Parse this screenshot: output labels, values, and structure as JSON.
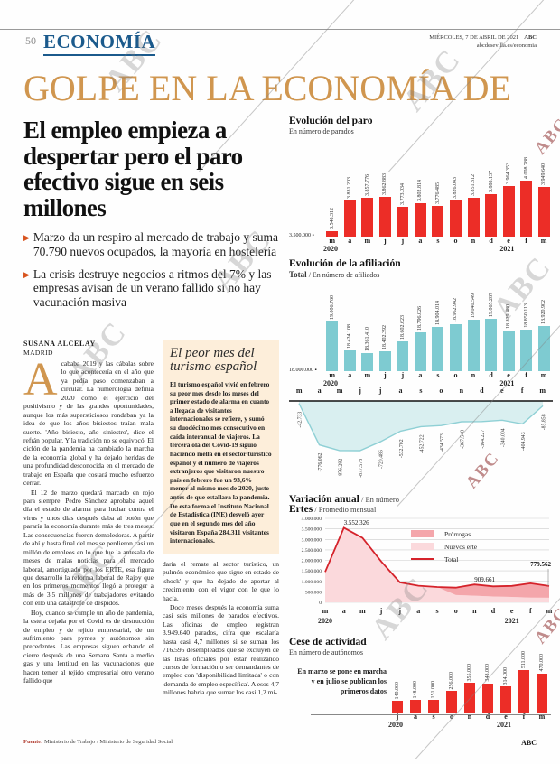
{
  "page": {
    "page_number": "50",
    "section": "ECONOMÍA",
    "date_line": "MIÉRCOLES, 7 DE ABRIL DE 2021",
    "brand": "ABC",
    "site": "abcdesevilla.es/economia",
    "banner": "GOLPE EN LA ECONOMÍA DE",
    "watermark": "ABC"
  },
  "article": {
    "headline": "El empleo empieza a despertar pero el paro efectivo sigue en seis millones",
    "bullets": [
      {
        "text": "Marzo da un respiro al mercado de trabajo y suma 70.790 nuevos ocupados, la mayoría en hostelería"
      },
      {
        "text": "La crisis destruye negocios a ritmos del 7% y las empresas avisan de un verano fallido si no hay vacunación masiva"
      }
    ],
    "author": "SUSANA ALCELAY",
    "location": "MADRID",
    "dropcap": "A",
    "col1_p1": "cababa 2019 y las cábalas sobre lo que acontecería en el año que ya pedía paso comenzaban a circular. La numerología definía 2020 como el ejercicio del positivismo y de las grandes oportunidades, aunque los más supersticiosos rondaban ya la idea de que los años bisiestos traían mala suerte. 'Año bisiesto, año siniestro', dice el refrán popular. Y la tradición no se equivocó. El ciclón de la pandemia ha cambiado la marcha de la economía global y ha dejado heridas de una profundidad desconocida en el mercado de trabajo en España que costará mucho esfuerzo cerrar.",
    "col1_p2": "El 12 de marzo quedará marcado en rojo para siempre. Pedro Sánchez aprobaba aquel día el estado de alarma para luchar contra el virus y unos días después daba al botón que pararía la economía durante más de tres meses. Las consecuencias fueron demoledoras. A partir de ahí y hasta final del mes se perdieron casi un millón de empleos en lo que fue la antesala de meses de malas noticias para el mercado laboral, amortiguado por los ERTE, esa figura que desarrolló la reforma laboral de Rajoy que en los primeros momentos llegó a proteger a más de 3,5 millones de trabajadores evitando con ello una catástrofe de despidos.",
    "col1_p3": "Hoy, cuando se cumple un año de pandemia, la estela dejada por el Covid es de destrucción de empleo y de tejido empresarial, de un sufrimiento para pymes y autónomos sin precedentes. Las empresas siguen echando el cierre después de una Semana Santa a medio gas y una lentitud en las vacunaciones que hacen temer al tejido empresarial otro verano fallido que",
    "col2_p1": "daría el remate al sector turístico, un pulmón económico que sigue en estado de 'shock' y que ha dejado de aportar al crecimiento con el vigor con le que lo hacía.",
    "col2_p2": "Doce meses después la economía suma casi seis millones de parados efectivos. Las oficinas de empleo registran 3.949.640 parados, cifra que escalaría hasta casi 4,7 millones si se suman los 716.595 desempleados que se excluyen de las listas oficiales por estar realizando cursos de formación o ser demandantes de empleo con 'disponibilidad limitada' o con 'demanda de empleo específica'. A esos 4,7 millones habría que sumar los casi 1,2 mi-"
  },
  "box": {
    "title_line1": "El peor mes del",
    "title_line2": "turismo español",
    "body": "El turismo español vivió en febrero su peor mes desde los meses del primer estado de alarma en cuanto a llegada de visitantes internacionales se refiere, y sumó su duodécimo mes consecutivo en caída interanual de viajeros. La tercera ola del Covid-19 siguió haciendo mella en el sector turístico español y el número de viajeros extranjeros que visitaron nuestro país en febrero fue un 93,6% menor al mismo mes de 2020, justo antes de que estallara la pandemia. De esta forma el Instituto Nacional de Estadística (INE) desveló ayer que en el segundo mes del año visitaron España 284.311 visitantes internacionales."
  },
  "chart_data": [
    {
      "type": "bar",
      "title": "Evolución del paro",
      "subtitle": "En número de parados",
      "categories": [
        "m",
        "a",
        "m",
        "j",
        "j",
        "a",
        "s",
        "o",
        "n",
        "d",
        "e",
        "f",
        "m"
      ],
      "years": [
        {
          "index": 0,
          "label": "2020"
        },
        {
          "index": 10,
          "label": "2021"
        }
      ],
      "values": [
        3548312,
        3831203,
        3857776,
        3862883,
        3773034,
        3802814,
        3776485,
        3826043,
        3851312,
        3888137,
        3964353,
        4008788,
        3949640
      ],
      "value_labels": [
        "3.548.312",
        "3.831.203",
        "3.857.776",
        "3.862.883",
        "3.773.034",
        "3.802.814",
        "3.776.485",
        "3.826.043",
        "3.851.312",
        "3.888.137",
        "3.964.353",
        "4.008.788",
        "3.949.640"
      ],
      "baseline_label": "3.500.000",
      "baseline_value": 3500000,
      "ymax": 4060000,
      "bar_color": "#ec2d27"
    },
    {
      "type": "bar",
      "title": "Evolución de la afiliación",
      "subtitle_bold": "Total",
      "subtitle_rest": " / En número de afiliados",
      "categories": [
        "m",
        "a",
        "m",
        "j",
        "j",
        "a",
        "s",
        "o",
        "n",
        "d",
        "e",
        "f",
        "m"
      ],
      "years": [
        {
          "index": 0,
          "label": "2020"
        },
        {
          "index": 10,
          "label": "2021"
        }
      ],
      "values": [
        19006760,
        18424108,
        18361410,
        18402392,
        18602623,
        18796026,
        18904014,
        18962942,
        19040549,
        19065287,
        18829480,
        18850113,
        18920902
      ],
      "value_labels": [
        "19.006.760",
        "18.424.108",
        "18.361.410",
        "18.402.392",
        "18.602.623",
        "18.796.026",
        "18.904.014",
        "18.962.942",
        "19.040.549",
        "19.065.287",
        "18.829.480",
        "18.850.113",
        "18.920.902"
      ],
      "baseline_label": "18.000.000",
      "baseline_value": 18000000,
      "ymax": 19100000,
      "bar_color": "#7ecbd1"
    },
    {
      "type": "area",
      "title_bold": "Variación anual",
      "title_rest": " / En número",
      "categories": [
        "m",
        "a",
        "m",
        "j",
        "j",
        "a",
        "s",
        "o",
        "n",
        "d",
        "e",
        "f",
        "m"
      ],
      "values": [
        -42733,
        -776062,
        -876282,
        -877578,
        -720486,
        -532702,
        -452722,
        -434573,
        -367548,
        -364227,
        -340004,
        -404943,
        -85858
      ],
      "value_labels": [
        "-42.733",
        "-776.062",
        "-876.282",
        "-877.578",
        "-720.486",
        "-532.702",
        "-452.722",
        "-434.573",
        "-367.548",
        "-364.227",
        "-340.004",
        "-404.943",
        "-85.858"
      ],
      "fill_color": "#d9eff0",
      "line_color": "#8fd0d5"
    },
    {
      "type": "area",
      "title_bold": "Ertes",
      "title_rest": " / Promedio mensual",
      "categories": [
        "m",
        "a",
        "m",
        "j",
        "j",
        "a",
        "s",
        "o",
        "n",
        "d",
        "e",
        "f",
        "m"
      ],
      "years": [
        {
          "index": 0,
          "label": "2020"
        },
        {
          "index": 10,
          "label": "2021"
        }
      ],
      "ytick_labels": [
        "4.000.000",
        "3.500.000",
        "3.000.000",
        "2.500.000",
        "2.000.000",
        "1.500.000",
        "1.000.000",
        "500.000",
        "0"
      ],
      "ylim": [
        0,
        4000000
      ],
      "series": [
        {
          "name": "Prórrogas",
          "color": "#f4a6ab",
          "values": [
            0,
            0,
            0,
            0,
            0,
            0,
            0,
            350000,
            530000,
            480000,
            523000,
            679661,
            559562
          ]
        },
        {
          "name": "Nuevos erte",
          "color": "#fbd9dc",
          "values": [
            1450000,
            3552326,
            3070000,
            1950000,
            950000,
            790000,
            730000,
            350000,
            320000,
            280000,
            260000,
            230000,
            220000
          ]
        },
        {
          "name": "Total",
          "color": "#d5232b",
          "values": [
            1450000,
            3552326,
            3070000,
            1950000,
            950000,
            790000,
            730000,
            700000,
            850000,
            760000,
            783000,
            909661,
            779562
          ]
        }
      ],
      "annotations": [
        {
          "label": "3.552.326",
          "index": 1
        },
        {
          "label": "909.661",
          "index": 11
        },
        {
          "label": "779.562",
          "index": 12
        }
      ]
    },
    {
      "type": "bar",
      "title": "Cese de actividad",
      "subtitle": "En número de autónomos",
      "note": "En marzo se pone en marcha y en julio se publican los primeros datos",
      "categories": [
        "j",
        "a",
        "s",
        "o",
        "n",
        "d",
        "e",
        "f",
        "m"
      ],
      "years": [
        {
          "index": 0,
          "label": "2020"
        },
        {
          "index": 6,
          "label": "2021"
        }
      ],
      "values": [
        140000,
        148000,
        151000,
        256000,
        355000,
        348000,
        314000,
        511000,
        470000
      ],
      "value_labels": [
        "140.000",
        "148.000",
        "151.000",
        "256.000",
        "355.000",
        "348.000",
        "314.000",
        "511.000",
        "470.000"
      ],
      "baseline_value": 0,
      "ymax": 520000,
      "bar_color": "#ec2d27"
    }
  ],
  "footer": {
    "source_label": "Fuente:",
    "source": "Ministerio de Trabajo / Ministerio de Seguridad Social",
    "brand": "ABC"
  }
}
